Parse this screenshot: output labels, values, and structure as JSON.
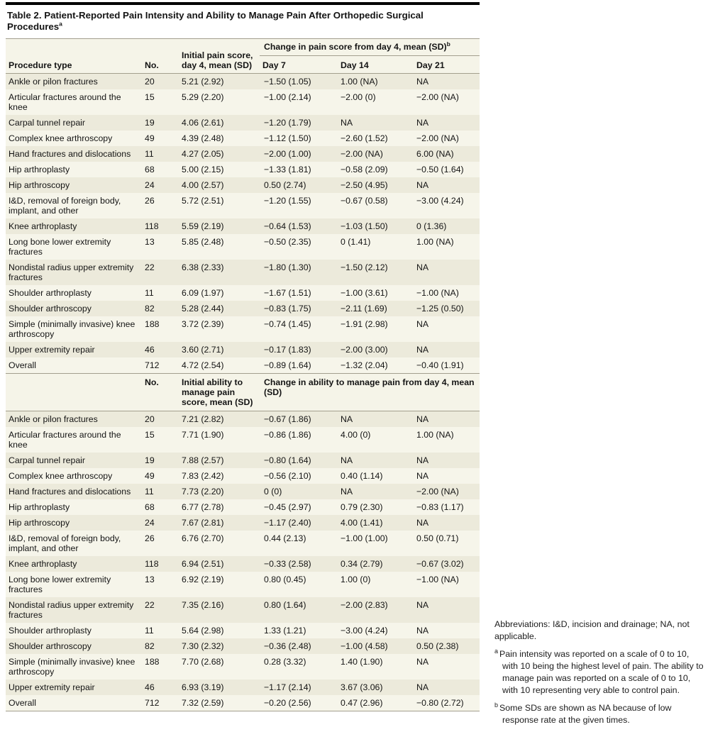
{
  "title": "Table 2. Patient-Reported Pain Intensity and Ability to Manage Pain After Orthopedic Surgical Procedures",
  "title_sup": "a",
  "colors": {
    "stripe_dark": "#eceadb",
    "stripe_light": "#f6f5ea",
    "rule": "#a39f8e",
    "top_rule": "#000000"
  },
  "pain_table": {
    "col_headers": {
      "procedure": "Procedure type",
      "no": "No.",
      "initial": "Initial pain score, day 4, mean (SD)",
      "change_span": "Change in pain score from day 4, mean (SD)",
      "change_sup": "b",
      "day7": "Day 7",
      "day14": "Day 14",
      "day21": "Day 21"
    },
    "rows": [
      [
        "Ankle or pilon fractures",
        "20",
        "5.21 (2.92)",
        "−1.50 (1.05)",
        "1.00 (NA)",
        "NA"
      ],
      [
        "Articular fractures around the knee",
        "15",
        "5.29 (2.20)",
        "−1.00 (2.14)",
        "−2.00 (0)",
        "−2.00 (NA)"
      ],
      [
        "Carpal tunnel repair",
        "19",
        "4.06 (2.61)",
        "−1.20 (1.79)",
        "NA",
        "NA"
      ],
      [
        "Complex knee arthroscopy",
        "49",
        "4.39 (2.48)",
        "−1.12 (1.50)",
        "−2.60 (1.52)",
        "−2.00 (NA)"
      ],
      [
        "Hand fractures and dislocations",
        "11",
        "4.27 (2.05)",
        "−2.00 (1.00)",
        "−2.00 (NA)",
        "6.00 (NA)"
      ],
      [
        "Hip arthroplasty",
        "68",
        "5.00 (2.15)",
        "−1.33 (1.81)",
        "−0.58 (2.09)",
        "−0.50 (1.64)"
      ],
      [
        "Hip arthroscopy",
        "24",
        "4.00 (2.57)",
        "0.50 (2.74)",
        "−2.50 (4.95)",
        "NA"
      ],
      [
        "I&D, removal of foreign body, implant, and other",
        "26",
        "5.72 (2.51)",
        "−1.20 (1.55)",
        "−0.67 (0.58)",
        "−3.00 (4.24)"
      ],
      [
        "Knee arthroplasty",
        "118",
        "5.59 (2.19)",
        "−0.64 (1.53)",
        "−1.03 (1.50)",
        "0 (1.36)"
      ],
      [
        "Long bone lower extremity fractures",
        "13",
        "5.85 (2.48)",
        "−0.50 (2.35)",
        "0 (1.41)",
        "1.00 (NA)"
      ],
      [
        "Nondistal radius upper extremity fractures",
        "22",
        "6.38 (2.33)",
        "−1.80 (1.30)",
        "−1.50 (2.12)",
        "NA"
      ],
      [
        "Shoulder arthroplasty",
        "11",
        "6.09 (1.97)",
        "−1.67 (1.51)",
        "−1.00 (3.61)",
        "−1.00 (NA)"
      ],
      [
        "Shoulder arthroscopy",
        "82",
        "5.28 (2.44)",
        "−0.83 (1.75)",
        "−2.11 (1.69)",
        "−1.25 (0.50)"
      ],
      [
        "Simple (minimally invasive) knee arthroscopy",
        "188",
        "3.72 (2.39)",
        "−0.74 (1.45)",
        "−1.91 (2.98)",
        "NA"
      ],
      [
        "Upper extremity repair",
        "46",
        "3.60 (2.71)",
        "−0.17 (1.83)",
        "−2.00 (3.00)",
        "NA"
      ],
      [
        "Overall",
        "712",
        "4.72 (2.54)",
        "−0.89 (1.64)",
        "−1.32 (2.04)",
        "−0.40 (1.91)"
      ]
    ]
  },
  "ability_table": {
    "col_headers": {
      "no": "No.",
      "initial": "Initial ability to manage pain score, mean (SD)",
      "change_span": "Change in ability to manage pain from day 4, mean (SD)"
    },
    "rows": [
      [
        "Ankle or pilon fractures",
        "20",
        "7.21 (2.82)",
        "−0.67 (1.86)",
        "NA",
        "NA"
      ],
      [
        "Articular fractures around the knee",
        "15",
        "7.71 (1.90)",
        "−0.86 (1.86)",
        "4.00 (0)",
        "1.00 (NA)"
      ],
      [
        "Carpal tunnel repair",
        "19",
        "7.88 (2.57)",
        "−0.80 (1.64)",
        "NA",
        "NA"
      ],
      [
        "Complex knee arthroscopy",
        "49",
        "7.83 (2.42)",
        "−0.56 (2.10)",
        "0.40 (1.14)",
        "NA"
      ],
      [
        "Hand fractures and dislocations",
        "11",
        "7.73 (2.20)",
        "0 (0)",
        "NA",
        "−2.00 (NA)"
      ],
      [
        "Hip arthroplasty",
        "68",
        "6.77 (2.78)",
        "−0.45 (2.97)",
        "0.79 (2.30)",
        "−0.83 (1.17)"
      ],
      [
        "Hip arthroscopy",
        "24",
        "7.67 (2.81)",
        "−1.17 (2.40)",
        "4.00 (1.41)",
        "NA"
      ],
      [
        "I&D, removal of foreign body, implant, and other",
        "26",
        "6.76 (2.70)",
        "0.44 (2.13)",
        "−1.00 (1.00)",
        "0.50 (0.71)"
      ],
      [
        "Knee arthroplasty",
        "118",
        "6.94 (2.51)",
        "−0.33 (2.58)",
        "0.34 (2.79)",
        "−0.67 (3.02)"
      ],
      [
        "Long bone lower extremity fractures",
        "13",
        "6.92 (2.19)",
        "0.80 (0.45)",
        "1.00 (0)",
        "−1.00 (NA)"
      ],
      [
        "Nondistal radius upper extremity fractures",
        "22",
        "7.35 (2.16)",
        "0.80 (1.64)",
        "−2.00 (2.83)",
        "NA"
      ],
      [
        "Shoulder arthroplasty",
        "11",
        "5.64 (2.98)",
        "1.33 (1.21)",
        "−3.00 (4.24)",
        "NA"
      ],
      [
        "Shoulder arthroscopy",
        "82",
        "7.30 (2.32)",
        "−0.36 (2.48)",
        "−1.00 (4.58)",
        "0.50 (2.38)"
      ],
      [
        "Simple (minimally invasive) knee arthroscopy",
        "188",
        "7.70 (2.68)",
        "0.28 (3.32)",
        "1.40 (1.90)",
        "NA"
      ],
      [
        "Upper extremity repair",
        "46",
        "6.93 (3.19)",
        "−1.17 (2.14)",
        "3.67 (3.06)",
        "NA"
      ],
      [
        "Overall",
        "712",
        "7.32 (2.59)",
        "−0.20 (2.56)",
        "0.47 (2.96)",
        "−0.80 (2.72)"
      ]
    ]
  },
  "footnotes": {
    "abbreviations": "Abbreviations: I&D, incision and drainage; NA, not applicable.",
    "a_marker": "a",
    "a_text": "Pain intensity was reported on a scale of 0 to 10, with 10 being the highest level of pain. The ability to manage pain was reported on a scale of 0 to 10, with 10 representing very able to control pain.",
    "b_marker": "b",
    "b_text": "Some SDs are shown as NA because of low response rate at the given times."
  }
}
